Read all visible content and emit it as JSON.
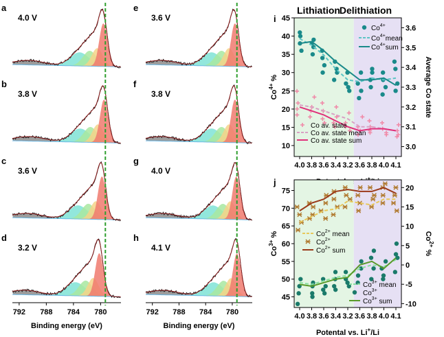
{
  "colors": {
    "cyan_fill": "#7fe3d6",
    "green_fill": "#a8e8a0",
    "yellow_fill": "#f5d48a",
    "red_fill": "#f07a6e",
    "grey_fill": "#8c8c8c",
    "baseline": "#6ab8e6",
    "guide": "#2e9e2e",
    "lith_band": "#e4f5e4",
    "delith_band": "#e6e0f4",
    "teal": "#1a8a8a",
    "teal_mean": "#5cc4c4",
    "pink": "#e0307a",
    "pink_mean": "#d9a0c4",
    "pink_marker": "#f08aa8",
    "brown": "#9b3a1a",
    "brown_marker": "#b07a30",
    "yellow_mean": "#e8c85a",
    "green": "#5a9a2a",
    "green_mean": "#88e0a0",
    "green_marker": "#1a7a6a"
  },
  "spectra": {
    "xlabel": "Binding energy (eV)",
    "xticks": [
      "792",
      "788",
      "784",
      "780"
    ],
    "xrange": [
      793,
      777
    ],
    "guide_energy": 779.3,
    "left": [
      {
        "letter": "a",
        "voltage": "4.0 V",
        "peak_energy": 779.6
      },
      {
        "letter": "b",
        "voltage": "3.8 V",
        "peak_energy": 779.5
      },
      {
        "letter": "c",
        "voltage": "3.6 V",
        "peak_energy": 779.8
      },
      {
        "letter": "d",
        "voltage": "3.2 V",
        "peak_energy": 780.2
      }
    ],
    "right": [
      {
        "letter": "e",
        "voltage": "3.6 V",
        "peak_energy": 779.6
      },
      {
        "letter": "f",
        "voltage": "3.8 V",
        "peak_energy": 779.6
      },
      {
        "letter": "g",
        "voltage": "4.0 V",
        "peak_energy": 779.4
      },
      {
        "letter": "h",
        "voltage": "4.1 V",
        "peak_energy": 779.3
      }
    ]
  },
  "chart_data": [
    {
      "panel": "i",
      "type": "scatter",
      "title_left": "Lithiation",
      "title_right": "Delithiation",
      "categories": [
        "4.0",
        "3.8",
        "3.6",
        "3.4",
        "3.2",
        "3.6",
        "3.8",
        "4.0",
        "4.1"
      ],
      "xlabel": "Potental vs. Li",
      "xlabel_sup": "+",
      "xlabel_tail": "/Li",
      "ylabel_left": "Co",
      "ylabel_left_sup": "4+",
      "ylabel_left_tail": " %",
      "ylabel_right": "Average Co state",
      "ylim_left": [
        7,
        45
      ],
      "yticks_left": [
        "10",
        "15",
        "20",
        "25",
        "30",
        "35",
        "40",
        "45"
      ],
      "ylim_right": [
        2.95,
        3.65
      ],
      "yticks_right": [
        "3.0",
        "3.1",
        "3.2",
        "3.3",
        "3.4",
        "3.5",
        "3.6"
      ],
      "series": [
        {
          "name": "Co4+",
          "axis": "left",
          "values": [
            [
              40,
              38,
              36,
              41
            ],
            [
              38,
              37,
              35,
              39
            ],
            [
              34,
              32,
              30,
              36
            ],
            [
              31,
              30,
              28,
              33
            ],
            [
              27,
              26,
              25,
              30
            ],
            [
              27,
              25,
              23,
              30
            ],
            [
              30,
              28,
              26,
              31
            ],
            [
              28,
              26,
              24,
              30
            ],
            [
              33,
              27,
              25,
              31
            ]
          ]
        },
        {
          "name": "Co4+ mean",
          "axis": "left",
          "values": [
            39.3,
            37.5,
            34.8,
            31,
            28,
            27.5,
            28.5,
            28,
            28.5
          ]
        },
        {
          "name": "Co4+ sum",
          "axis": "left",
          "values": [
            38,
            38.5,
            36,
            33,
            30.5,
            28,
            28,
            28.5,
            26.5
          ]
        },
        {
          "name": "Co av. state",
          "axis": "right",
          "values": [
            [
              3.28,
              3.22,
              3.19,
              3.16
            ],
            [
              3.25,
              3.2,
              3.18,
              3.15
            ],
            [
              3.22,
              3.18,
              3.14,
              3.12
            ],
            [
              3.2,
              3.15,
              3.12,
              3.1
            ],
            [
              3.17,
              3.12,
              3.1,
              3.08
            ],
            [
              3.15,
              3.1,
              3.08,
              3.06
            ],
            [
              3.13,
              3.1,
              3.08,
              3.07
            ],
            [
              3.12,
              3.09,
              3.07,
              3.06
            ],
            [
              3.11,
              3.08,
              3.06,
              3.05
            ]
          ]
        },
        {
          "name": "Co av. state mean",
          "axis": "right",
          "values": [
            3.21,
            3.2,
            3.18,
            3.16,
            3.14,
            3.1,
            3.1,
            3.09,
            3.08
          ]
        },
        {
          "name": "Co av. state sum",
          "axis": "right",
          "values": [
            3.2,
            3.18,
            3.16,
            3.13,
            3.1,
            3.08,
            3.09,
            3.09,
            3.08
          ]
        }
      ],
      "legend": {
        "co4": "Co",
        "co4_sup": "4+",
        "mean": "mean",
        "sum": "sum",
        "av_state": "Co av. state",
        "av_mean": "Co av. state mean",
        "av_sum": "Co av. state sum"
      }
    },
    {
      "panel": "j",
      "type": "scatter",
      "categories": [
        "4.0",
        "3.8",
        "3.6",
        "3.4",
        "3.2",
        "3.6",
        "3.8",
        "4.0",
        "4.1"
      ],
      "xlabel": "Potental vs. Li",
      "xlabel_sup": "+",
      "xlabel_tail": "/Li",
      "ylabel_left": "Co",
      "ylabel_left_sup": "3+",
      "ylabel_left_tail": " %",
      "ylabel_right": "Co",
      "ylabel_right_sup": "2+",
      "ylabel_right_tail": " %",
      "ylim_left": [
        42,
        78
      ],
      "yticks_left": [
        "45",
        "50",
        "55",
        "60",
        "65",
        "70",
        "75"
      ],
      "ylim_right": [
        -11,
        22
      ],
      "yticks_right": [
        "-10",
        "-5",
        "0",
        "5",
        "10",
        "15",
        "20"
      ],
      "series": [
        {
          "name": "Co2+",
          "axis": "right",
          "values": [
            [
              15,
              13,
              11,
              9
            ],
            [
              16,
              15,
              13,
              12
            ],
            [
              18,
              16,
              14,
              12
            ],
            [
              19,
              17,
              15,
              13
            ],
            [
              20,
              18,
              17,
              15
            ],
            [
              20,
              18,
              16,
              14
            ],
            [
              20,
              18,
              17,
              15
            ],
            [
              21,
              20,
              18,
              16
            ],
            [
              20,
              18,
              16,
              14
            ]
          ]
        },
        {
          "name": "Co2+ mean",
          "axis": "right",
          "values": [
            11,
            12.5,
            14,
            14.5,
            16.5,
            16,
            15.5,
            17,
            17
          ]
        },
        {
          "name": "Co2+ sum",
          "axis": "right",
          "values": [
            14,
            16,
            17,
            19,
            19.5,
            19,
            19,
            20,
            18.5
          ]
        },
        {
          "name": "Co3+",
          "axis": "left",
          "values": [
            [
              50,
              48,
              46,
              43
            ],
            [
              49,
              48,
              46,
              45
            ],
            [
              50,
              48,
              47,
              46
            ],
            [
              52,
              50,
              48,
              47
            ],
            [
              52,
              50,
              49,
              48
            ],
            [
              55,
              53,
              51,
              49
            ],
            [
              58,
              56,
              53,
              50
            ],
            [
              55,
              53,
              51,
              50
            ],
            [
              60,
              57,
              56,
              52
            ]
          ]
        },
        {
          "name": "Co3+ mean",
          "axis": "left",
          "values": [
            49,
            48.5,
            49.5,
            50.5,
            51,
            53,
            54,
            53.5,
            55.5
          ]
        },
        {
          "name": "Co3+ sum",
          "axis": "left",
          "values": [
            48.5,
            48,
            49,
            50,
            50.5,
            54,
            55,
            53,
            56
          ]
        }
      ],
      "legend": {
        "co2": "Co",
        "co2_sup": "2+",
        "co3": "Co",
        "co3_sup": "3+",
        "mean": "mean",
        "sum": "sum"
      }
    }
  ]
}
